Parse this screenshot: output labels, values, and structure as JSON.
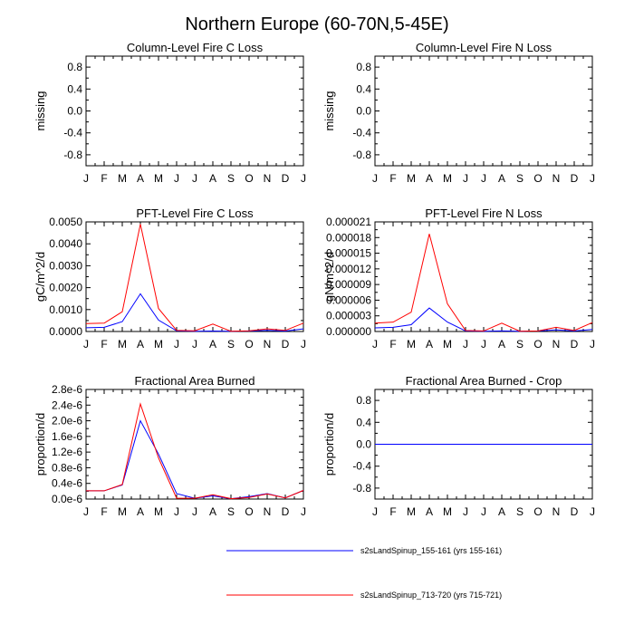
{
  "figure": {
    "title": "Northern Europe (60-70N,5-45E)"
  },
  "legend": [
    {
      "label": "s2sLandSpinup_155-161 (yrs 155-161)",
      "color": "#0000ff"
    },
    {
      "label": "s2sLandSpinup_713-720 (yrs 715-721)",
      "color": "#ff0000"
    }
  ],
  "chart_data": [
    {
      "type": "line",
      "title": "Column-Level Fire C Loss",
      "ylabel": "missing",
      "categories": [
        "J",
        "F",
        "M",
        "A",
        "M",
        "J",
        "J",
        "A",
        "S",
        "O",
        "N",
        "D",
        "J"
      ],
      "ylim": [
        -1,
        1
      ],
      "yticks": [
        -0.8,
        -0.4,
        0.0,
        0.4,
        0.8
      ],
      "ytick_labels": [
        "-0.8",
        "-0.4",
        "0.0",
        "0.4",
        "0.8"
      ],
      "series": []
    },
    {
      "type": "line",
      "title": "Column-Level Fire N Loss",
      "ylabel": "missing",
      "categories": [
        "J",
        "F",
        "M",
        "A",
        "M",
        "J",
        "J",
        "A",
        "S",
        "O",
        "N",
        "D",
        "J"
      ],
      "ylim": [
        -1,
        1
      ],
      "yticks": [
        -0.8,
        -0.4,
        0.0,
        0.4,
        0.8
      ],
      "ytick_labels": [
        "-0.8",
        "-0.4",
        "0.0",
        "0.4",
        "0.8"
      ],
      "series": []
    },
    {
      "type": "line",
      "title": "PFT-Level Fire C Loss",
      "ylabel": "gC/m^2/d",
      "categories": [
        "J",
        "F",
        "M",
        "A",
        "M",
        "J",
        "J",
        "A",
        "S",
        "O",
        "N",
        "D",
        "J"
      ],
      "ylim": [
        0,
        0.005
      ],
      "yticks": [
        0,
        0.001,
        0.002,
        0.003,
        0.004,
        0.005
      ],
      "ytick_labels": [
        "0.0000",
        "0.0010",
        "0.0020",
        "0.0030",
        "0.0040",
        "0.0050"
      ],
      "series": [
        {
          "name": "s2sLandSpinup_155-161",
          "color": "#0000ff",
          "values": [
            0.00017,
            0.00019,
            0.00045,
            0.00172,
            0.00052,
            3e-05,
            1e-05,
            2e-05,
            1e-05,
            2e-05,
            5e-05,
            2e-05,
            0.00012
          ]
        },
        {
          "name": "s2sLandSpinup_713-720",
          "color": "#ff0000",
          "values": [
            0.00036,
            0.00038,
            0.0009,
            0.0049,
            0.00105,
            5e-05,
            3e-05,
            0.00034,
            1e-05,
            3e-05,
            0.00012,
            5e-05,
            0.00038
          ]
        }
      ]
    },
    {
      "type": "line",
      "title": "PFT-Level Fire N Loss",
      "ylabel": "gN/m^2/d",
      "categories": [
        "J",
        "F",
        "M",
        "A",
        "M",
        "J",
        "J",
        "A",
        "S",
        "O",
        "N",
        "D",
        "J"
      ],
      "ylim": [
        0,
        2.1e-05
      ],
      "yticks": [
        0,
        3e-06,
        6e-06,
        9e-06,
        1.2e-05,
        1.5e-05,
        1.8e-05,
        2.1e-05
      ],
      "ytick_labels": [
        "0.000000",
        "0.000003",
        "0.000006",
        "0.000009",
        "0.000012",
        "0.000015",
        "0.000018",
        "0.000021"
      ],
      "series": [
        {
          "name": "s2sLandSpinup_155-161",
          "color": "#0000ff",
          "values": [
            7e-07,
            8e-07,
            1.3e-06,
            4.5e-06,
            1.8e-06,
            1e-07,
            5e-08,
            1e-07,
            5e-08,
            1e-07,
            3e-07,
            1e-07,
            4e-07
          ]
        },
        {
          "name": "s2sLandSpinup_713-720",
          "color": "#ff0000",
          "values": [
            1.6e-06,
            1.8e-06,
            3.7e-06,
            1.87e-05,
            5.3e-06,
            2e-07,
            1e-07,
            1.6e-06,
            5e-08,
            1e-07,
            8e-07,
            2e-07,
            1.7e-06
          ]
        }
      ]
    },
    {
      "type": "line",
      "title": "Fractional Area Burned",
      "ylabel": "proportion/d",
      "categories": [
        "J",
        "F",
        "M",
        "A",
        "M",
        "J",
        "J",
        "A",
        "S",
        "O",
        "N",
        "D",
        "J"
      ],
      "ylim": [
        0,
        2.8e-06
      ],
      "yticks": [
        0,
        4e-07,
        8e-07,
        1.2e-06,
        1.6e-06,
        2e-06,
        2.4e-06,
        2.8e-06
      ],
      "ytick_labels": [
        "0.0e-6",
        "0.4e-6",
        "0.8e-6",
        "1.2e-6",
        "1.6e-6",
        "2.0e-6",
        "2.4e-6",
        "2.8e-6"
      ],
      "series": [
        {
          "name": "s2sLandSpinup_155-161",
          "color": "#0000ff",
          "values": [
            2.1e-07,
            2.1e-07,
            3.6e-07,
            2e-06,
            1.15e-06,
            1.4e-07,
            2e-08,
            8e-08,
            1e-08,
            6e-08,
            1.4e-07,
            3e-08,
            2.2e-07
          ]
        },
        {
          "name": "s2sLandSpinup_713-720",
          "color": "#ff0000",
          "values": [
            2.1e-07,
            2.1e-07,
            3.7e-07,
            2.43e-06,
            1.05e-06,
            2e-08,
            2e-08,
            1.1e-07,
            1e-08,
            4e-08,
            1.3e-07,
            3e-08,
            2.2e-07
          ]
        }
      ]
    },
    {
      "type": "line",
      "title": "Fractional Area Burned - Crop",
      "ylabel": "proportion/d",
      "categories": [
        "J",
        "F",
        "M",
        "A",
        "M",
        "J",
        "J",
        "A",
        "S",
        "O",
        "N",
        "D",
        "J"
      ],
      "ylim": [
        -1,
        1
      ],
      "yticks": [
        -0.8,
        -0.4,
        0.0,
        0.4,
        0.8
      ],
      "ytick_labels": [
        "-0.8",
        "-0.4",
        "0.0",
        "0.4",
        "0.8"
      ],
      "series": [
        {
          "name": "s2sLandSpinup_713-720",
          "color": "#ff0000",
          "values": [
            0,
            0,
            0,
            0,
            0,
            0,
            0,
            0,
            0,
            0,
            0,
            0,
            0
          ]
        },
        {
          "name": "s2sLandSpinup_155-161",
          "color": "#0000ff",
          "values": [
            0,
            0,
            0,
            0,
            0,
            0,
            0,
            0,
            0,
            0,
            0,
            0,
            0
          ]
        }
      ]
    }
  ]
}
